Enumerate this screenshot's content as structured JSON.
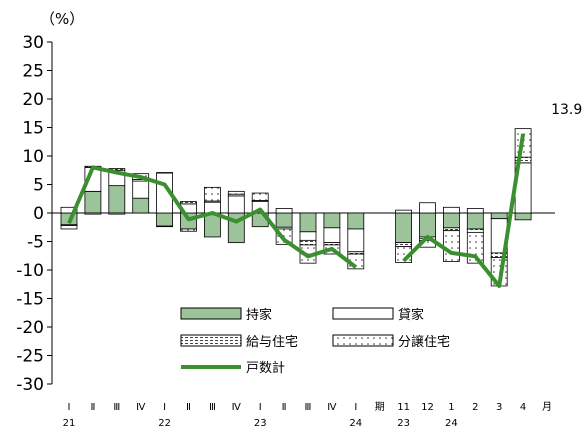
{
  "chart_data": {
    "type": "bar",
    "unit_label": "（%）",
    "ylim": [
      -30,
      30
    ],
    "y_ticks": [
      30,
      25,
      20,
      15,
      10,
      5,
      0,
      -5,
      -10,
      -15,
      -20,
      -25,
      -30
    ],
    "grid": false,
    "legend_position": "lower-center",
    "categories": [
      {
        "main": "Ⅰ",
        "sub": "21"
      },
      {
        "main": "Ⅱ",
        "sub": ""
      },
      {
        "main": "Ⅲ",
        "sub": ""
      },
      {
        "main": "Ⅳ",
        "sub": ""
      },
      {
        "main": "Ⅰ",
        "sub": "22"
      },
      {
        "main": "Ⅱ",
        "sub": ""
      },
      {
        "main": "Ⅲ",
        "sub": ""
      },
      {
        "main": "Ⅳ",
        "sub": ""
      },
      {
        "main": "Ⅰ",
        "sub": "23"
      },
      {
        "main": "Ⅱ",
        "sub": ""
      },
      {
        "main": "Ⅲ",
        "sub": ""
      },
      {
        "main": "Ⅳ",
        "sub": ""
      },
      {
        "main": "Ⅰ",
        "sub": "24"
      },
      {
        "main": "期",
        "sub": ""
      },
      {
        "main": "11",
        "sub": "23"
      },
      {
        "main": "12",
        "sub": ""
      },
      {
        "main": "1",
        "sub": "24"
      },
      {
        "main": "2",
        "sub": ""
      },
      {
        "main": "3",
        "sub": ""
      },
      {
        "main": "4",
        "sub": ""
      },
      {
        "main": "月",
        "sub": ""
      }
    ],
    "series": [
      {
        "name": "持家",
        "color": "#9dc39a",
        "pattern": "solid",
        "values": [
          -2.0,
          3.8,
          4.8,
          2.6,
          -2.3,
          -2.8,
          -4.2,
          -5.2,
          -2.4,
          -2.5,
          -3.3,
          -2.6,
          -2.8,
          null,
          -5.2,
          -4.2,
          -2.6,
          -2.8,
          -1.0,
          -1.2,
          null
        ]
      },
      {
        "name": "貸家",
        "color": "#ffffff",
        "pattern": "outline",
        "values": [
          1.0,
          4.2,
          2.7,
          3.0,
          7.0,
          1.6,
          1.9,
          3.0,
          2.0,
          0.8,
          -1.5,
          -2.6,
          -4.0,
          null,
          0.5,
          1.8,
          1.0,
          0.8,
          -6.0,
          8.8,
          null
        ]
      },
      {
        "name": "給与住宅",
        "color": "#bbbbbb",
        "pattern": "dashed",
        "values": [
          -0.2,
          0.2,
          0.3,
          0.3,
          0.1,
          0.4,
          0.2,
          0.3,
          0.2,
          -0.3,
          -0.8,
          -0.4,
          -0.4,
          null,
          -0.7,
          -0.6,
          -0.5,
          -0.6,
          -0.8,
          1.0,
          null
        ]
      },
      {
        "name": "分譲住宅",
        "color": "#ffffff",
        "pattern": "dotted",
        "values": [
          -0.6,
          -0.2,
          -0.2,
          1.0,
          -0.1,
          -0.4,
          2.4,
          0.5,
          1.3,
          -2.7,
          -3.2,
          -1.6,
          -2.6,
          null,
          -2.8,
          -1.2,
          -5.4,
          -5.4,
          -5.0,
          5.0,
          null
        ]
      }
    ],
    "total_series": {
      "name": "戸数計",
      "color": "#3a8f2e",
      "values": [
        -1.8,
        8.0,
        7.1,
        6.3,
        5.0,
        -1.1,
        0.0,
        -1.5,
        0.6,
        -4.7,
        -7.6,
        -6.3,
        -9.5,
        null,
        -8.4,
        -4.2,
        -7.0,
        -7.6,
        -12.8,
        13.9,
        null
      ]
    },
    "annotations": [
      {
        "text": "13.9"
      }
    ]
  }
}
